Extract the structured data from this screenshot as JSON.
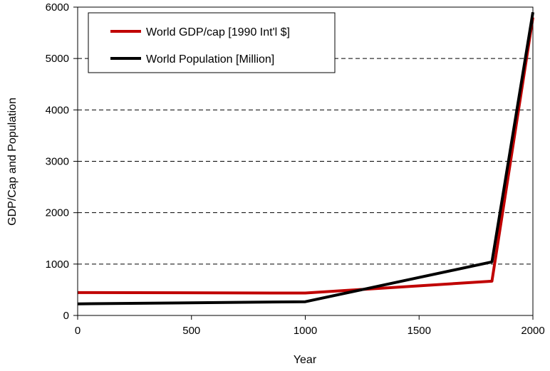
{
  "chart_data": {
    "type": "line",
    "title": "",
    "xlabel": "Year",
    "ylabel": "GDP/Cap and Population",
    "xlim": [
      0,
      2000
    ],
    "ylim": [
      0,
      6000
    ],
    "x_ticks": [
      0,
      500,
      1000,
      1500,
      2000
    ],
    "y_ticks": [
      0,
      1000,
      2000,
      3000,
      4000,
      5000,
      6000
    ],
    "grid": "horizontal-dashed",
    "legend_position": "top-left",
    "series": [
      {
        "name": "World GDP/cap [1990 Int'l $]",
        "color": "#c00000",
        "points": [
          {
            "x": 0,
            "y": 445
          },
          {
            "x": 1000,
            "y": 436
          },
          {
            "x": 1820,
            "y": 667
          },
          {
            "x": 2000,
            "y": 5800
          }
        ]
      },
      {
        "name": "World Population [Million]",
        "color": "#000000",
        "points": [
          {
            "x": 0,
            "y": 226
          },
          {
            "x": 1000,
            "y": 267
          },
          {
            "x": 1820,
            "y": 1042
          },
          {
            "x": 2000,
            "y": 5900
          }
        ]
      }
    ]
  }
}
